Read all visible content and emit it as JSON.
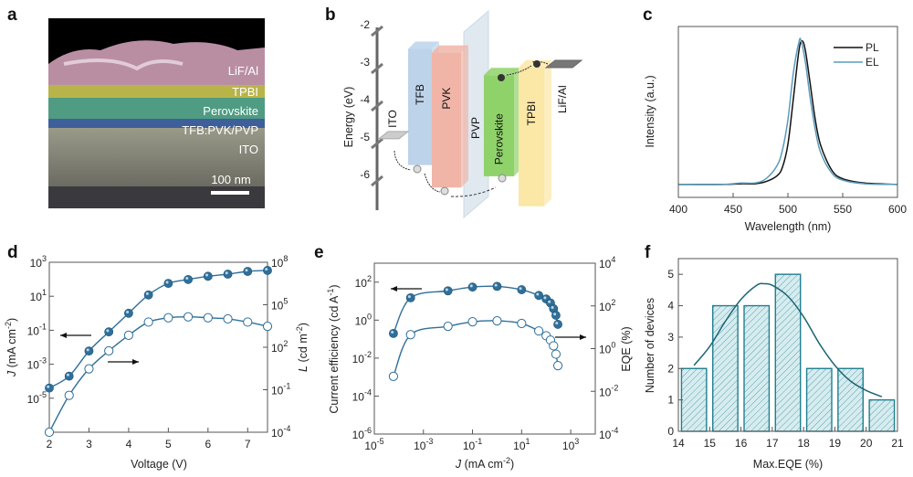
{
  "panel_labels": [
    "a",
    "b",
    "c",
    "d",
    "e",
    "f"
  ],
  "panel_a": {
    "layers": [
      "LiF/Al",
      "TPBI",
      "Perovskite",
      "TFB:PVK/PVP",
      "ITO"
    ],
    "scale_bar": "100 nm",
    "layer_colors": {
      "LiF/Al": "#b98ea3",
      "TPBI": "#b9b44a",
      "Perovskite": "#4f9c82",
      "TFB:PVK/PVP": "#3f5f9a",
      "ITO": "#8f8f80"
    }
  },
  "panel_b": {
    "axis_label": "Energy (eV)",
    "ticks": [
      -2,
      -3,
      -4,
      -5,
      -6
    ],
    "layers": [
      {
        "name": "TFB",
        "top": -2.5,
        "bottom": -5.6,
        "color": "#bcd3ea"
      },
      {
        "name": "PVK",
        "top": -2.6,
        "bottom": -6.2,
        "color": "#f1b5a8"
      },
      {
        "name": "PVP",
        "color": "#dbe5ee"
      },
      {
        "name": "Perovskite",
        "top": -3.2,
        "bottom": -5.9,
        "color": "#8fd26a"
      },
      {
        "name": "TPBI",
        "top": -3.0,
        "bottom": -6.7,
        "color": "#fbe7a6"
      }
    ],
    "electrodes": [
      {
        "name": "ITO",
        "level": -4.9
      },
      {
        "name": "LiF/Al",
        "level": -3.0
      }
    ]
  },
  "chart_data": [
    {
      "panel": "c",
      "type": "line",
      "xlabel": "Wavelength (nm)",
      "ylabel": "Intensity (a.u.)",
      "xlim": [
        400,
        600
      ],
      "xticks": [
        400,
        450,
        500,
        550,
        600
      ],
      "ylim": [
        -0.09,
        1.1
      ],
      "legend_position": "top-right",
      "series": [
        {
          "name": "PL",
          "color": "#111111",
          "x": [
            400,
            440,
            457,
            470,
            480,
            490,
            495,
            500,
            505,
            510,
            513,
            516,
            520,
            525,
            530,
            540,
            550,
            570,
            600
          ],
          "y": [
            0,
            0,
            0.005,
            0.005,
            0.02,
            0.06,
            0.12,
            0.28,
            0.6,
            0.93,
            1.0,
            0.93,
            0.72,
            0.45,
            0.27,
            0.1,
            0.04,
            0.01,
            0
          ]
        },
        {
          "name": "EL",
          "color": "#5b9bbb",
          "x": [
            400,
            440,
            457,
            470,
            480,
            490,
            495,
            500,
            505,
            510,
            512,
            516,
            520,
            525,
            530,
            540,
            550,
            570,
            600
          ],
          "y": [
            0,
            0,
            0.01,
            0.01,
            0.04,
            0.13,
            0.24,
            0.45,
            0.78,
            0.99,
            1.0,
            0.85,
            0.62,
            0.38,
            0.22,
            0.08,
            0.03,
            0.005,
            0
          ]
        }
      ]
    },
    {
      "panel": "d",
      "type": "scatter",
      "xlabel": "Voltage (V)",
      "xlim": [
        2,
        7.5
      ],
      "xticks": [
        2,
        3,
        4,
        5,
        6,
        7
      ],
      "ylabel_left": {
        "main": "J",
        "rest": " (mA cm",
        "sup": "-2",
        "end": ")"
      },
      "ylabel_right": {
        "main": "L",
        "rest": " (cd m",
        "sup": "-2",
        "end": ")"
      },
      "ylim_left": [
        1e-07,
        1000.0
      ],
      "ylog_left_tick_exponents": [
        3,
        1,
        -1,
        -3,
        -5
      ],
      "ylim_right": [
        0.0001,
        100000000.0
      ],
      "ylog_right_tick_exponents": [
        8,
        5,
        2,
        -1,
        -4
      ],
      "series": [
        {
          "name": "J",
          "axis": "left",
          "marker": "filled",
          "color": "#2f6f9a",
          "x": [
            2,
            2.5,
            3,
            3.5,
            4,
            4.5,
            5,
            5.5,
            6,
            6.5,
            7,
            7.5
          ],
          "y": [
            4e-05,
            0.0002,
            0.006,
            0.08,
            1,
            12,
            57,
            97,
            150,
            200,
            290,
            330
          ]
        },
        {
          "name": "L",
          "axis": "right",
          "marker": "open",
          "color": "#2f6f9a",
          "x": [
            2,
            2.5,
            3,
            3.5,
            4,
            4.5,
            5,
            5.5,
            6,
            6.5,
            7,
            7.5
          ],
          "y": [
            0.0001,
            0.04,
            3,
            55,
            700,
            6000,
            12000,
            14000,
            12000,
            10000,
            6000,
            3000
          ]
        }
      ]
    },
    {
      "panel": "e",
      "type": "scatter",
      "xlabel": {
        "main": "J",
        "rest": " (mA cm",
        "sup": "-2",
        "end": ")"
      },
      "xlim": [
        1e-05,
        10000.0
      ],
      "xlog_tick_exponents": [
        -5,
        -3,
        -1,
        1,
        3
      ],
      "ylabel_left": {
        "main": "Current efficiency  (cd A",
        "sup": "-1",
        "end": ")"
      },
      "ylabel_right": "EQE (%)",
      "ylim_left": [
        1e-06,
        1000.0
      ],
      "ylog_left_tick_exponents": [
        2,
        0,
        -2,
        -4,
        -6
      ],
      "ylim_right": [
        0.0001,
        10000.0
      ],
      "ylog_right_tick_exponents": [
        4,
        2,
        0,
        -2,
        -4
      ],
      "series": [
        {
          "name": "Current efficiency",
          "axis": "left",
          "marker": "filled",
          "color": "#2f6f9a",
          "x": [
            6e-05,
            0.0003,
            0.01,
            0.1,
            1,
            10,
            50,
            100,
            150,
            200,
            250,
            300
          ],
          "y": [
            0.2,
            15,
            35,
            55,
            60,
            40,
            20,
            13,
            8,
            4,
            1.8,
            0.6
          ]
        },
        {
          "name": "EQE",
          "axis": "right",
          "marker": "open",
          "color": "#2f6f9a",
          "x": [
            6e-05,
            0.0003,
            0.01,
            0.1,
            1,
            10,
            50,
            100,
            150,
            200,
            250,
            300
          ],
          "y": [
            0.05,
            4.5,
            11,
            18,
            20,
            15,
            6.7,
            4,
            2.5,
            1.35,
            0.55,
            0.16
          ]
        }
      ]
    },
    {
      "panel": "f",
      "type": "bar",
      "xlabel": "Max.EQE (%)",
      "ylabel": "Number of devices",
      "xlim": [
        14,
        21
      ],
      "xticks": [
        14,
        15,
        16,
        17,
        18,
        19,
        20,
        21
      ],
      "ylim": [
        0,
        5.5
      ],
      "yticks": [
        0,
        1,
        2,
        3,
        4,
        5
      ],
      "bars": [
        {
          "from": 14.1,
          "to": 14.9,
          "count": 2
        },
        {
          "from": 15.1,
          "to": 15.9,
          "count": 4
        },
        {
          "from": 16.1,
          "to": 16.9,
          "count": 4
        },
        {
          "from": 17.1,
          "to": 17.9,
          "count": 5
        },
        {
          "from": 18.1,
          "to": 18.9,
          "count": 2
        },
        {
          "from": 19.1,
          "to": 19.9,
          "count": 2
        },
        {
          "from": 20.1,
          "to": 20.9,
          "count": 1
        }
      ],
      "fit": {
        "x": [
          14.5,
          15,
          15.5,
          16,
          16.5,
          16.75,
          17,
          17.5,
          18,
          18.5,
          19,
          19.5,
          20,
          20.5
        ],
        "y": [
          2.1,
          2.7,
          3.5,
          4.2,
          4.65,
          4.7,
          4.65,
          4.3,
          3.65,
          2.8,
          2.1,
          1.6,
          1.3,
          1.1
        ]
      },
      "colors": {
        "bar_edge": "#1f7f8f",
        "bar_fill": "#d7ecef",
        "fit": "#1b6675"
      }
    }
  ]
}
